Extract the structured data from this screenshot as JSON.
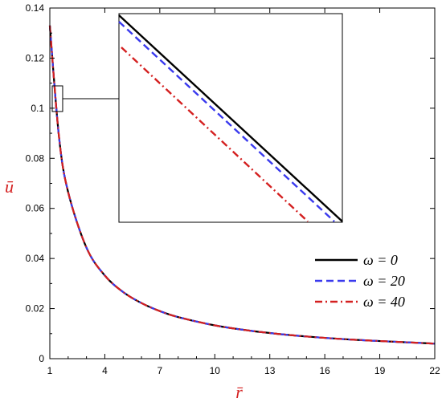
{
  "chart_data": {
    "type": "line",
    "title": "",
    "xlabel": "r̄",
    "ylabel": "ū",
    "xlim": [
      1,
      22
    ],
    "ylim": [
      0,
      0.14
    ],
    "x_ticks": [
      1,
      4,
      7,
      10,
      13,
      16,
      19,
      22
    ],
    "y_ticks": [
      0,
      0.02,
      0.04,
      0.06,
      0.08,
      0.1,
      0.12,
      0.14
    ],
    "y_tick_labels": [
      "0",
      "0.02",
      "0.04",
      "0.06",
      "0.08",
      "0.1",
      "0.12",
      "0.14"
    ],
    "grid": false,
    "legend_position": "bottom-right",
    "label_color": "#d42020",
    "series": [
      {
        "name": "ω = 0",
        "color": "#000000",
        "dash": "solid",
        "x": [
          1,
          1.5,
          2,
          3,
          4,
          5,
          6,
          7,
          8,
          10,
          12,
          14,
          16,
          18,
          20,
          22
        ],
        "y": [
          0.133,
          0.0886,
          0.0665,
          0.0443,
          0.0332,
          0.0266,
          0.0222,
          0.019,
          0.0166,
          0.0133,
          0.0111,
          0.0095,
          0.0083,
          0.0074,
          0.0067,
          0.006
        ]
      },
      {
        "name": "ω = 20",
        "color": "#3a3aee",
        "dash": "dashed",
        "x": [
          1,
          1.5,
          2,
          3,
          4,
          5,
          6,
          7,
          8,
          10,
          12,
          14,
          16,
          18,
          20,
          22
        ],
        "y": [
          0.133,
          0.0886,
          0.0665,
          0.0443,
          0.0332,
          0.0266,
          0.0222,
          0.019,
          0.0166,
          0.0133,
          0.0111,
          0.0095,
          0.0083,
          0.0074,
          0.0067,
          0.006
        ]
      },
      {
        "name": "ω = 40",
        "color": "#d42020",
        "dash": "dashdot",
        "x": [
          1,
          1.5,
          2,
          3,
          4,
          5,
          6,
          7,
          8,
          10,
          12,
          14,
          16,
          18,
          20,
          22
        ],
        "y": [
          0.133,
          0.0886,
          0.0665,
          0.0443,
          0.0332,
          0.0266,
          0.0222,
          0.019,
          0.0166,
          0.0133,
          0.0111,
          0.0095,
          0.0083,
          0.0074,
          0.0067,
          0.006
        ]
      }
    ],
    "inset": {
      "description_of_region": "zoom near r̄ = 1.2, ū = 0.1",
      "x_range": [
        1.0,
        1.7
      ],
      "y_range": [
        0.099,
        0.107
      ]
    }
  }
}
